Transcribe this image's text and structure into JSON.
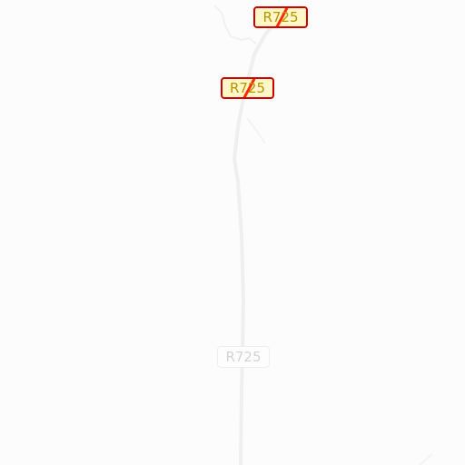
{
  "map": {
    "route_shields": [
      {
        "label": "R725",
        "style": "highlighted"
      },
      {
        "label": "R725",
        "style": "highlighted"
      },
      {
        "label": "R725",
        "style": "faded"
      }
    ],
    "colors": {
      "background": "#fcfcfc",
      "road": "#efefef",
      "highlight_border": "#d10000",
      "highlight_fill": "#fff7c8",
      "highlight_text": "#b59500",
      "strike": "#ff2a00"
    }
  }
}
